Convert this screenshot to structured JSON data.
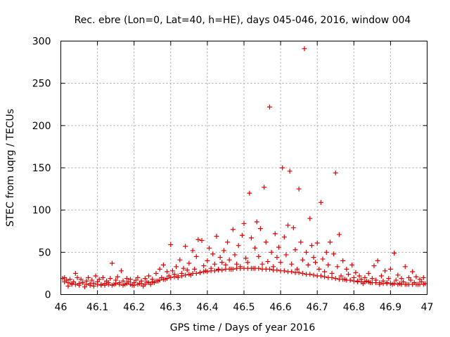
{
  "chart_data": {
    "type": "scatter",
    "title": "Rec. ebre (Lon=0, Lat=40, h=HE), days 045-046, 2016, window 004",
    "xlabel": "GPS time / Days of year 2016",
    "ylabel": "STEC from uqrg / TECUs",
    "xlim": [
      46,
      47
    ],
    "ylim": [
      0,
      300
    ],
    "xticks": [
      "46",
      "46.1",
      "46.2",
      "46.3",
      "46.4",
      "46.5",
      "46.6",
      "46.7",
      "46.8",
      "46.9",
      "47"
    ],
    "yticks": [
      "0",
      "50",
      "100",
      "150",
      "200",
      "250",
      "300"
    ],
    "grid": true,
    "marker": "plus",
    "color": "#e00000",
    "series": [
      {
        "name": "STEC",
        "points": [
          [
            46.005,
            19
          ],
          [
            46.01,
            20
          ],
          [
            46.015,
            17
          ],
          [
            46.02,
            10
          ],
          [
            46.025,
            18
          ],
          [
            46.03,
            12
          ],
          [
            46.035,
            15
          ],
          [
            46.04,
            25
          ],
          [
            46.045,
            20
          ],
          [
            46.05,
            11
          ],
          [
            46.055,
            18
          ],
          [
            46.06,
            14
          ],
          [
            46.065,
            9
          ],
          [
            46.07,
            16
          ],
          [
            46.075,
            20
          ],
          [
            46.08,
            13
          ],
          [
            46.085,
            17
          ],
          [
            46.09,
            10
          ],
          [
            46.095,
            22
          ],
          [
            46.1,
            15
          ],
          [
            46.105,
            18
          ],
          [
            46.11,
            12
          ],
          [
            46.115,
            20
          ],
          [
            46.12,
            11
          ],
          [
            46.125,
            16
          ],
          [
            46.13,
            14
          ],
          [
            46.135,
            19
          ],
          [
            46.14,
            37
          ],
          [
            46.145,
            12
          ],
          [
            46.15,
            17
          ],
          [
            46.155,
            21
          ],
          [
            46.16,
            14
          ],
          [
            46.165,
            28
          ],
          [
            46.17,
            16
          ],
          [
            46.175,
            12
          ],
          [
            46.18,
            19
          ],
          [
            46.185,
            15
          ],
          [
            46.19,
            18
          ],
          [
            46.195,
            11
          ],
          [
            46.2,
            14
          ],
          [
            46.205,
            17
          ],
          [
            46.21,
            20
          ],
          [
            46.215,
            13
          ],
          [
            46.22,
            16
          ],
          [
            46.225,
            10
          ],
          [
            46.23,
            19
          ],
          [
            46.235,
            15
          ],
          [
            46.24,
            22
          ],
          [
            46.245,
            12
          ],
          [
            46.25,
            18
          ],
          [
            46.255,
            14
          ],
          [
            46.26,
            25
          ],
          [
            46.265,
            16
          ],
          [
            46.27,
            30
          ],
          [
            46.275,
            20
          ],
          [
            46.28,
            35
          ],
          [
            46.285,
            18
          ],
          [
            46.29,
            27
          ],
          [
            46.295,
            22
          ],
          [
            46.3,
            59
          ],
          [
            46.305,
            28
          ],
          [
            46.31,
            24
          ],
          [
            46.315,
            33
          ],
          [
            46.32,
            20
          ],
          [
            46.325,
            41
          ],
          [
            46.33,
            25
          ],
          [
            46.335,
            31
          ],
          [
            46.34,
            57
          ],
          [
            46.345,
            29
          ],
          [
            46.35,
            37
          ],
          [
            46.355,
            23
          ],
          [
            46.36,
            52
          ],
          [
            46.365,
            30
          ],
          [
            46.37,
            45
          ],
          [
            46.375,
            65
          ],
          [
            46.38,
            26
          ],
          [
            46.385,
            64
          ],
          [
            46.39,
            34
          ],
          [
            46.395,
            28
          ],
          [
            46.4,
            40
          ],
          [
            46.405,
            55
          ],
          [
            46.41,
            31
          ],
          [
            46.415,
            48
          ],
          [
            46.42,
            36
          ],
          [
            46.425,
            69
          ],
          [
            46.43,
            30
          ],
          [
            46.435,
            44
          ],
          [
            46.44,
            38
          ],
          [
            46.445,
            52
          ],
          [
            46.45,
            35
          ],
          [
            46.455,
            62
          ],
          [
            46.46,
            41
          ],
          [
            46.465,
            30
          ],
          [
            46.47,
            77
          ],
          [
            46.475,
            47
          ],
          [
            46.48,
            36
          ],
          [
            46.485,
            58
          ],
          [
            46.49,
            33
          ],
          [
            46.495,
            70
          ],
          [
            46.5,
            84
          ],
          [
            46.505,
            43
          ],
          [
            46.51,
            38
          ],
          [
            46.515,
            120
          ],
          [
            46.52,
            67
          ],
          [
            46.525,
            31
          ],
          [
            46.53,
            55
          ],
          [
            46.535,
            86
          ],
          [
            46.54,
            45
          ],
          [
            46.545,
            78
          ],
          [
            46.55,
            36
          ],
          [
            46.555,
            127
          ],
          [
            46.56,
            62
          ],
          [
            46.565,
            39
          ],
          [
            46.57,
            222
          ],
          [
            46.575,
            50
          ],
          [
            46.58,
            33
          ],
          [
            46.585,
            72
          ],
          [
            46.59,
            44
          ],
          [
            46.595,
            56
          ],
          [
            46.6,
            38
          ],
          [
            46.605,
            150
          ],
          [
            46.61,
            68
          ],
          [
            46.615,
            47
          ],
          [
            46.62,
            82
          ],
          [
            46.625,
            146
          ],
          [
            46.63,
            36
          ],
          [
            46.635,
            79
          ],
          [
            46.64,
            53
          ],
          [
            46.645,
            30
          ],
          [
            46.65,
            125
          ],
          [
            46.655,
            62
          ],
          [
            46.66,
            41
          ],
          [
            46.665,
            291
          ],
          [
            46.67,
            50
          ],
          [
            46.675,
            35
          ],
          [
            46.68,
            90
          ],
          [
            46.685,
            58
          ],
          [
            46.69,
            44
          ],
          [
            46.695,
            38
          ],
          [
            46.7,
            61
          ],
          [
            46.705,
            30
          ],
          [
            46.71,
            109
          ],
          [
            46.715,
            42
          ],
          [
            46.72,
            27
          ],
          [
            46.725,
            50
          ],
          [
            46.73,
            35
          ],
          [
            46.735,
            62
          ],
          [
            46.74,
            25
          ],
          [
            46.745,
            48
          ],
          [
            46.75,
            144
          ],
          [
            46.755,
            33
          ],
          [
            46.76,
            71
          ],
          [
            46.765,
            22
          ],
          [
            46.77,
            40
          ],
          [
            46.775,
            18
          ],
          [
            46.78,
            30
          ],
          [
            46.785,
            24
          ],
          [
            46.79,
            17
          ],
          [
            46.795,
            35
          ],
          [
            46.8,
            20
          ],
          [
            46.805,
            26
          ],
          [
            46.81,
            15
          ],
          [
            46.815,
            22
          ],
          [
            46.82,
            18
          ],
          [
            46.825,
            13
          ],
          [
            46.83,
            20
          ],
          [
            46.835,
            16
          ],
          [
            46.84,
            25
          ],
          [
            46.845,
            14
          ],
          [
            46.85,
            19
          ],
          [
            46.855,
            34
          ],
          [
            46.86,
            17
          ],
          [
            46.865,
            40
          ],
          [
            46.87,
            12
          ],
          [
            46.875,
            22
          ],
          [
            46.88,
            16
          ],
          [
            46.885,
            28
          ],
          [
            46.89,
            14
          ],
          [
            46.895,
            19
          ],
          [
            46.9,
            30
          ],
          [
            46.905,
            12
          ],
          [
            46.91,
            49
          ],
          [
            46.915,
            17
          ],
          [
            46.92,
            23
          ],
          [
            46.925,
            13
          ],
          [
            46.93,
            19
          ],
          [
            46.935,
            15
          ],
          [
            46.94,
            33
          ],
          [
            46.945,
            12
          ],
          [
            46.95,
            20
          ],
          [
            46.955,
            17
          ],
          [
            46.96,
            27
          ],
          [
            46.965,
            14
          ],
          [
            46.97,
            21
          ],
          [
            46.975,
            12
          ],
          [
            46.98,
            18
          ],
          [
            46.985,
            15
          ],
          [
            46.99,
            20
          ],
          [
            46.995,
            13
          ]
        ]
      },
      {
        "name": "STEC band",
        "points": [
          [
            46.01,
            15
          ],
          [
            46.02,
            14
          ],
          [
            46.03,
            13
          ],
          [
            46.04,
            12
          ],
          [
            46.05,
            13
          ],
          [
            46.06,
            14
          ],
          [
            46.07,
            12
          ],
          [
            46.08,
            11
          ],
          [
            46.09,
            13
          ],
          [
            46.1,
            12
          ],
          [
            46.11,
            11
          ],
          [
            46.12,
            13
          ],
          [
            46.13,
            12
          ],
          [
            46.14,
            11
          ],
          [
            46.15,
            13
          ],
          [
            46.16,
            12
          ],
          [
            46.17,
            11
          ],
          [
            46.18,
            13
          ],
          [
            46.19,
            12
          ],
          [
            46.2,
            11
          ],
          [
            46.21,
            12
          ],
          [
            46.22,
            13
          ],
          [
            46.23,
            12
          ],
          [
            46.24,
            14
          ],
          [
            46.25,
            15
          ],
          [
            46.26,
            16
          ],
          [
            46.27,
            17
          ],
          [
            46.28,
            18
          ],
          [
            46.29,
            19
          ],
          [
            46.3,
            20
          ],
          [
            46.31,
            21
          ],
          [
            46.32,
            22
          ],
          [
            46.33,
            22
          ],
          [
            46.34,
            23
          ],
          [
            46.35,
            24
          ],
          [
            46.36,
            25
          ],
          [
            46.37,
            25
          ],
          [
            46.38,
            26
          ],
          [
            46.39,
            27
          ],
          [
            46.4,
            27
          ],
          [
            46.41,
            28
          ],
          [
            46.42,
            28
          ],
          [
            46.43,
            29
          ],
          [
            46.44,
            29
          ],
          [
            46.45,
            30
          ],
          [
            46.46,
            30
          ],
          [
            46.47,
            30
          ],
          [
            46.48,
            31
          ],
          [
            46.49,
            31
          ],
          [
            46.5,
            31
          ],
          [
            46.51,
            31
          ],
          [
            46.52,
            31
          ],
          [
            46.53,
            31
          ],
          [
            46.54,
            31
          ],
          [
            46.55,
            30
          ],
          [
            46.56,
            30
          ],
          [
            46.57,
            30
          ],
          [
            46.58,
            29
          ],
          [
            46.59,
            29
          ],
          [
            46.6,
            28
          ],
          [
            46.61,
            28
          ],
          [
            46.62,
            27
          ],
          [
            46.63,
            27
          ],
          [
            46.64,
            26
          ],
          [
            46.65,
            26
          ],
          [
            46.66,
            25
          ],
          [
            46.67,
            24
          ],
          [
            46.68,
            24
          ],
          [
            46.69,
            23
          ],
          [
            46.7,
            22
          ],
          [
            46.71,
            22
          ],
          [
            46.72,
            21
          ],
          [
            46.73,
            20
          ],
          [
            46.74,
            20
          ],
          [
            46.75,
            19
          ],
          [
            46.76,
            18
          ],
          [
            46.77,
            18
          ],
          [
            46.78,
            17
          ],
          [
            46.79,
            17
          ],
          [
            46.8,
            16
          ],
          [
            46.81,
            16
          ],
          [
            46.82,
            15
          ],
          [
            46.83,
            15
          ],
          [
            46.84,
            15
          ],
          [
            46.85,
            14
          ],
          [
            46.86,
            14
          ],
          [
            46.87,
            14
          ],
          [
            46.88,
            13
          ],
          [
            46.89,
            13
          ],
          [
            46.9,
            13
          ],
          [
            46.91,
            13
          ],
          [
            46.92,
            12
          ],
          [
            46.93,
            12
          ],
          [
            46.94,
            12
          ],
          [
            46.95,
            12
          ],
          [
            46.96,
            12
          ],
          [
            46.97,
            12
          ],
          [
            46.98,
            12
          ],
          [
            46.99,
            12
          ]
        ]
      }
    ]
  }
}
